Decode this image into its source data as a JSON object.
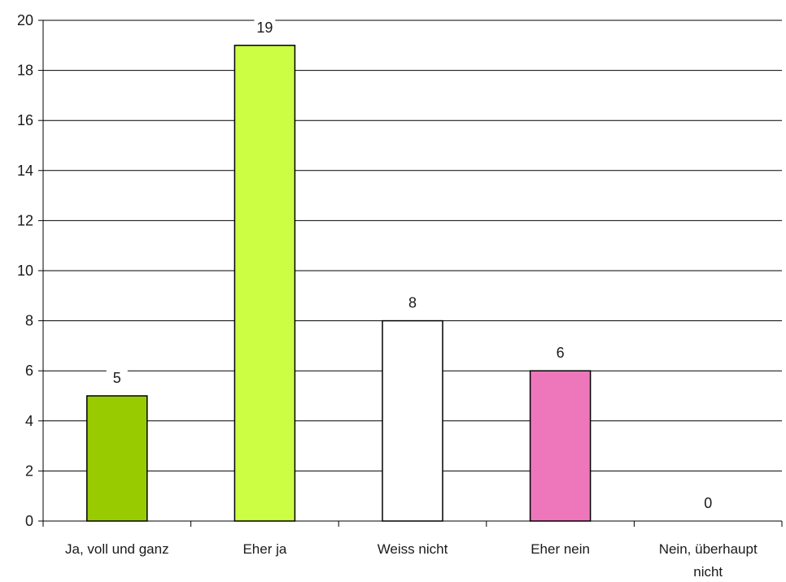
{
  "chart_data": {
    "type": "bar",
    "categories": [
      "Ja, voll und ganz",
      "Eher ja",
      "Weiss nicht",
      "Eher nein",
      "Nein, überhaupt nicht"
    ],
    "category_lines": [
      [
        "Ja, voll und ganz"
      ],
      [
        "Eher ja"
      ],
      [
        "Weiss nicht"
      ],
      [
        "Eher nein"
      ],
      [
        "Nein, überhaupt",
        "nicht"
      ]
    ],
    "values": [
      5,
      19,
      8,
      6,
      0
    ],
    "data_labels": [
      "5",
      "19",
      "8",
      "6",
      "0"
    ],
    "colors": [
      "#99cc00",
      "#ccff44",
      "#ffffff",
      "#ee77bb",
      "#ffffff"
    ],
    "ylim": [
      0,
      20
    ],
    "yticks": [
      0,
      2,
      4,
      6,
      8,
      10,
      12,
      14,
      16,
      18,
      20
    ],
    "grid": true,
    "title": "",
    "xlabel": "",
    "ylabel": ""
  }
}
